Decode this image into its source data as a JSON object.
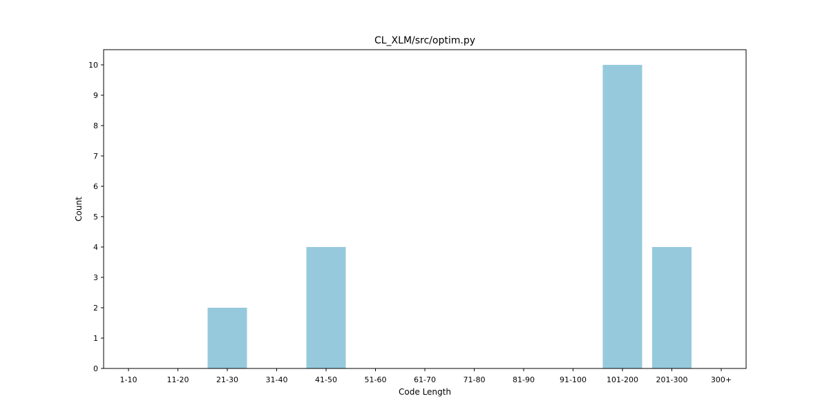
{
  "chart_data": {
    "type": "bar",
    "title": "CL_XLM/src/optim.py",
    "xlabel": "Code Length",
    "ylabel": "Count",
    "categories": [
      "1-10",
      "11-20",
      "21-30",
      "31-40",
      "41-50",
      "51-60",
      "61-70",
      "71-80",
      "81-90",
      "91-100",
      "101-200",
      "201-300",
      "300+"
    ],
    "values": [
      0,
      0,
      2,
      0,
      4,
      0,
      0,
      0,
      0,
      0,
      10,
      4,
      0
    ],
    "ylim": [
      0,
      10.5
    ],
    "yticks": [
      0,
      1,
      2,
      3,
      4,
      5,
      6,
      7,
      8,
      9,
      10
    ],
    "bar_color": "#96c9dc",
    "grid": false,
    "legend": "none"
  }
}
